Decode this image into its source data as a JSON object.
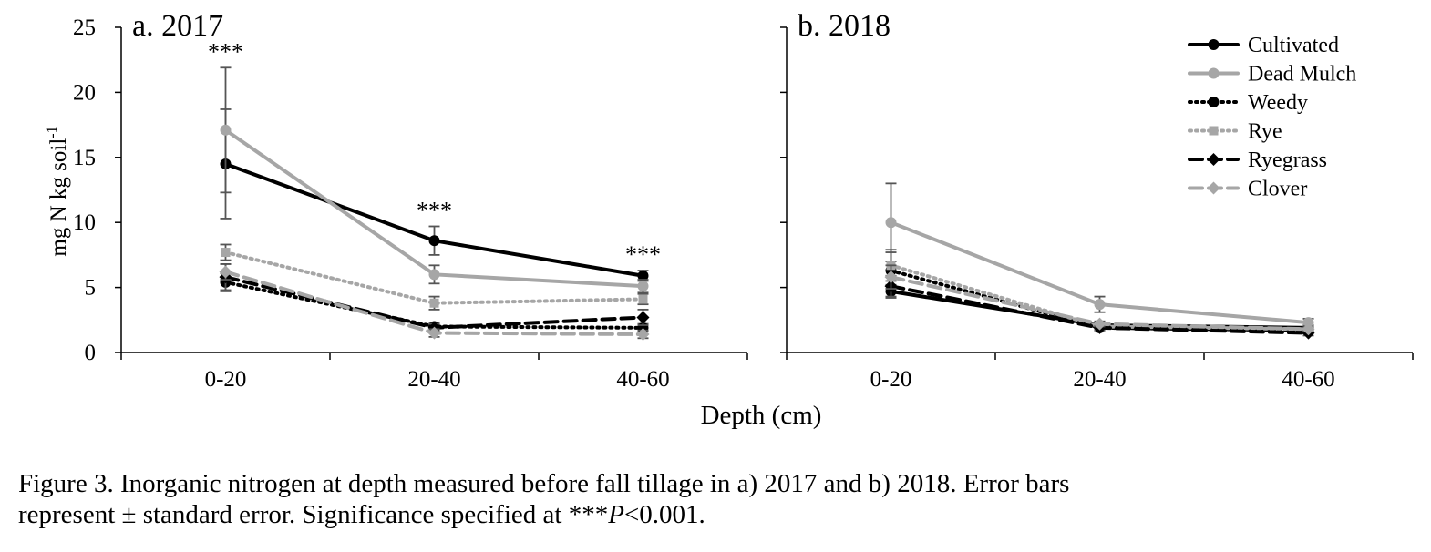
{
  "chart_data": [
    {
      "type": "line",
      "panel_label": "a. 2017",
      "categories": [
        "0-20",
        "20-40",
        "40-60"
      ],
      "ylim": [
        0,
        25
      ],
      "yticks": [
        0,
        5,
        10,
        15,
        20,
        25
      ],
      "ylabel": "mg N kg soil",
      "ylabel_sup": "-1",
      "xlabel": "Depth (cm)",
      "significance": [
        "***",
        "***",
        "***"
      ],
      "series": [
        {
          "name": "Cultivated",
          "values": [
            14.5,
            8.6,
            5.9
          ],
          "error": [
            4.2,
            1.1,
            0.4
          ]
        },
        {
          "name": "Dead Mulch",
          "values": [
            17.1,
            6.0,
            5.1
          ],
          "error": [
            4.8,
            0.7,
            0.5
          ]
        },
        {
          "name": "Weedy",
          "values": [
            5.4,
            2.0,
            1.9
          ],
          "error": [
            0.7,
            0.3,
            0.3
          ]
        },
        {
          "name": "Rye",
          "values": [
            7.7,
            3.8,
            4.1
          ],
          "error": [
            0.6,
            0.5,
            0.4
          ]
        },
        {
          "name": "Ryegrass",
          "values": [
            5.8,
            1.9,
            2.7
          ],
          "error": [
            1.0,
            0.3,
            0.6
          ]
        },
        {
          "name": "Clover",
          "values": [
            6.2,
            1.5,
            1.4
          ],
          "error": [
            0.6,
            0.3,
            0.3
          ]
        }
      ]
    },
    {
      "type": "line",
      "panel_label": "b. 2018",
      "categories": [
        "0-20",
        "20-40",
        "40-60"
      ],
      "ylim": [
        0,
        25
      ],
      "yticks": [
        0,
        5,
        10,
        15,
        20,
        25
      ],
      "series": [
        {
          "name": "Cultivated",
          "values": [
            4.7,
            2.1,
            1.9
          ],
          "error": [
            0.5,
            0.2,
            0.2
          ]
        },
        {
          "name": "Dead Mulch",
          "values": [
            10.0,
            3.7,
            2.3
          ],
          "error": [
            3.0,
            0.6,
            0.3
          ]
        },
        {
          "name": "Weedy",
          "values": [
            6.3,
            1.9,
            1.7
          ],
          "error": [
            1.4,
            0.2,
            0.2
          ]
        },
        {
          "name": "Rye",
          "values": [
            6.7,
            2.0,
            1.8
          ],
          "error": [
            1.2,
            0.2,
            0.2
          ]
        },
        {
          "name": "Ryegrass",
          "values": [
            5.1,
            1.9,
            1.5
          ],
          "error": [
            0.8,
            0.2,
            0.2
          ]
        },
        {
          "name": "Clover",
          "values": [
            5.8,
            2.2,
            1.8
          ],
          "error": [
            0.9,
            0.2,
            0.2
          ]
        }
      ]
    }
  ],
  "legend": {
    "placement": "top-right",
    "items": [
      {
        "name": "Cultivated",
        "color": "#000000",
        "dash": "solid",
        "marker": "circle"
      },
      {
        "name": "Dead Mulch",
        "color": "#a6a6a6",
        "dash": "solid",
        "marker": "circle"
      },
      {
        "name": "Weedy",
        "color": "#000000",
        "dash": "dotted",
        "marker": "circle"
      },
      {
        "name": "Rye",
        "color": "#a6a6a6",
        "dash": "dotted",
        "marker": "square"
      },
      {
        "name": "Ryegrass",
        "color": "#000000",
        "dash": "dashed",
        "marker": "diamond"
      },
      {
        "name": "Clover",
        "color": "#a6a6a6",
        "dash": "dashed",
        "marker": "diamond"
      }
    ]
  },
  "caption": {
    "line1": "Figure 3. Inorganic nitrogen at depth measured before fall tillage in a) 2017 and b) 2018. Error bars",
    "line2_prefix": "represent ± standard error. Significance specified at ***",
    "line2_italic": "P",
    "line2_suffix": "<0.001."
  }
}
